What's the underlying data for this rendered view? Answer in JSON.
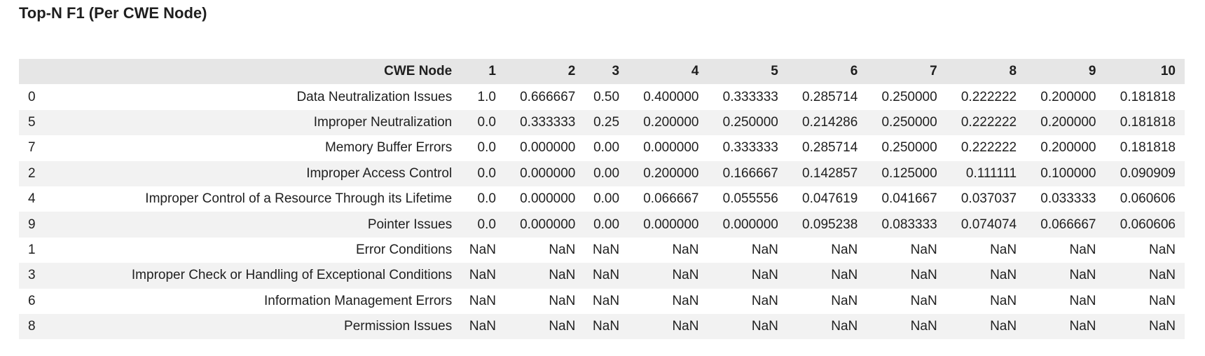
{
  "title": "Top-N F1 (Per CWE Node)",
  "table": {
    "columns": [
      "",
      "CWE Node",
      "1",
      "2",
      "3",
      "4",
      "5",
      "6",
      "7",
      "8",
      "9",
      "10"
    ],
    "rows": [
      [
        "0",
        "Data Neutralization Issues",
        "1.0",
        "0.666667",
        "0.50",
        "0.400000",
        "0.333333",
        "0.285714",
        "0.250000",
        "0.222222",
        "0.200000",
        "0.181818"
      ],
      [
        "5",
        "Improper Neutralization",
        "0.0",
        "0.333333",
        "0.25",
        "0.200000",
        "0.250000",
        "0.214286",
        "0.250000",
        "0.222222",
        "0.200000",
        "0.181818"
      ],
      [
        "7",
        "Memory Buffer Errors",
        "0.0",
        "0.000000",
        "0.00",
        "0.000000",
        "0.333333",
        "0.285714",
        "0.250000",
        "0.222222",
        "0.200000",
        "0.181818"
      ],
      [
        "2",
        "Improper Access Control",
        "0.0",
        "0.000000",
        "0.00",
        "0.200000",
        "0.166667",
        "0.142857",
        "0.125000",
        "0.111111",
        "0.100000",
        "0.090909"
      ],
      [
        "4",
        "Improper Control of a Resource Through its Lifetime",
        "0.0",
        "0.000000",
        "0.00",
        "0.066667",
        "0.055556",
        "0.047619",
        "0.041667",
        "0.037037",
        "0.033333",
        "0.060606"
      ],
      [
        "9",
        "Pointer Issues",
        "0.0",
        "0.000000",
        "0.00",
        "0.000000",
        "0.000000",
        "0.095238",
        "0.083333",
        "0.074074",
        "0.066667",
        "0.060606"
      ],
      [
        "1",
        "Error Conditions",
        "NaN",
        "NaN",
        "NaN",
        "NaN",
        "NaN",
        "NaN",
        "NaN",
        "NaN",
        "NaN",
        "NaN"
      ],
      [
        "3",
        "Improper Check or Handling of Exceptional Conditions",
        "NaN",
        "NaN",
        "NaN",
        "NaN",
        "NaN",
        "NaN",
        "NaN",
        "NaN",
        "NaN",
        "NaN"
      ],
      [
        "6",
        "Information Management Errors",
        "NaN",
        "NaN",
        "NaN",
        "NaN",
        "NaN",
        "NaN",
        "NaN",
        "NaN",
        "NaN",
        "NaN"
      ],
      [
        "8",
        "Permission Issues",
        "NaN",
        "NaN",
        "NaN",
        "NaN",
        "NaN",
        "NaN",
        "NaN",
        "NaN",
        "NaN",
        "NaN"
      ]
    ]
  }
}
